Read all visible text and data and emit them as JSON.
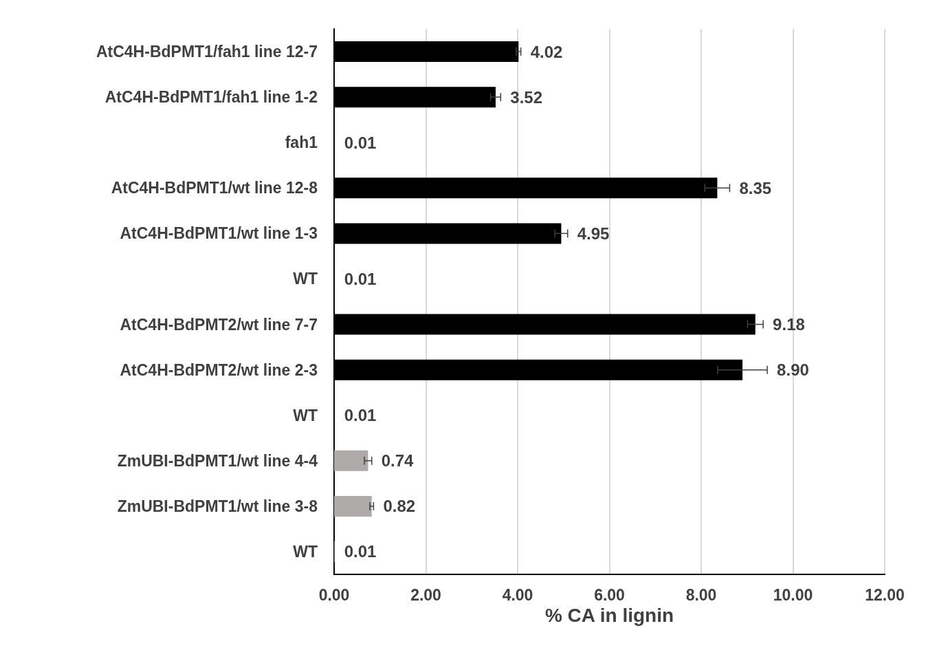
{
  "chart_data": {
    "type": "bar",
    "orientation": "horizontal",
    "xlabel": "% CA in lignin",
    "categories": [
      "AtC4H-BdPMT1/fah1 line 12-7",
      "AtC4H-BdPMT1/fah1 line 1-2",
      "fah1",
      "AtC4H-BdPMT1/wt line 12-8",
      "AtC4H-BdPMT1/wt line 1-3",
      "WT",
      "AtC4H-BdPMT2/wt line 7-7",
      "AtC4H-BdPMT2/wt line 2-3",
      "WT",
      "ZmUBI-BdPMT1/wt line 4-4",
      "ZmUBI-BdPMT1/wt line 3-8",
      "WT"
    ],
    "values": [
      4.02,
      3.52,
      0.01,
      8.35,
      4.95,
      0.01,
      9.18,
      8.9,
      0.01,
      0.74,
      0.82,
      0.01
    ],
    "value_labels": [
      "4.02",
      "3.52",
      "0.01",
      "8.35",
      "4.95",
      "0.01",
      "9.18",
      "8.90",
      "0.01",
      "0.74",
      "0.82",
      "0.01"
    ],
    "errors": [
      0.05,
      0.11,
      null,
      0.27,
      0.14,
      null,
      0.17,
      0.54,
      null,
      0.08,
      0.04,
      null
    ],
    "colors": [
      "#000000",
      "#000000",
      "#000000",
      "#000000",
      "#000000",
      "#000000",
      "#000000",
      "#000000",
      "#000000",
      "#aeaaaa",
      "#aeaaaa",
      "#aeaaaa"
    ],
    "xlim": [
      0,
      12
    ],
    "xticks": [
      {
        "value": 0,
        "label": "0.00"
      },
      {
        "value": 2,
        "label": "2.00"
      },
      {
        "value": 4,
        "label": "4.00"
      },
      {
        "value": 6,
        "label": "6.00"
      },
      {
        "value": 8,
        "label": "8.00"
      },
      {
        "value": 10,
        "label": "10.00"
      },
      {
        "value": 12,
        "label": "12.00"
      }
    ],
    "grid": "x"
  }
}
